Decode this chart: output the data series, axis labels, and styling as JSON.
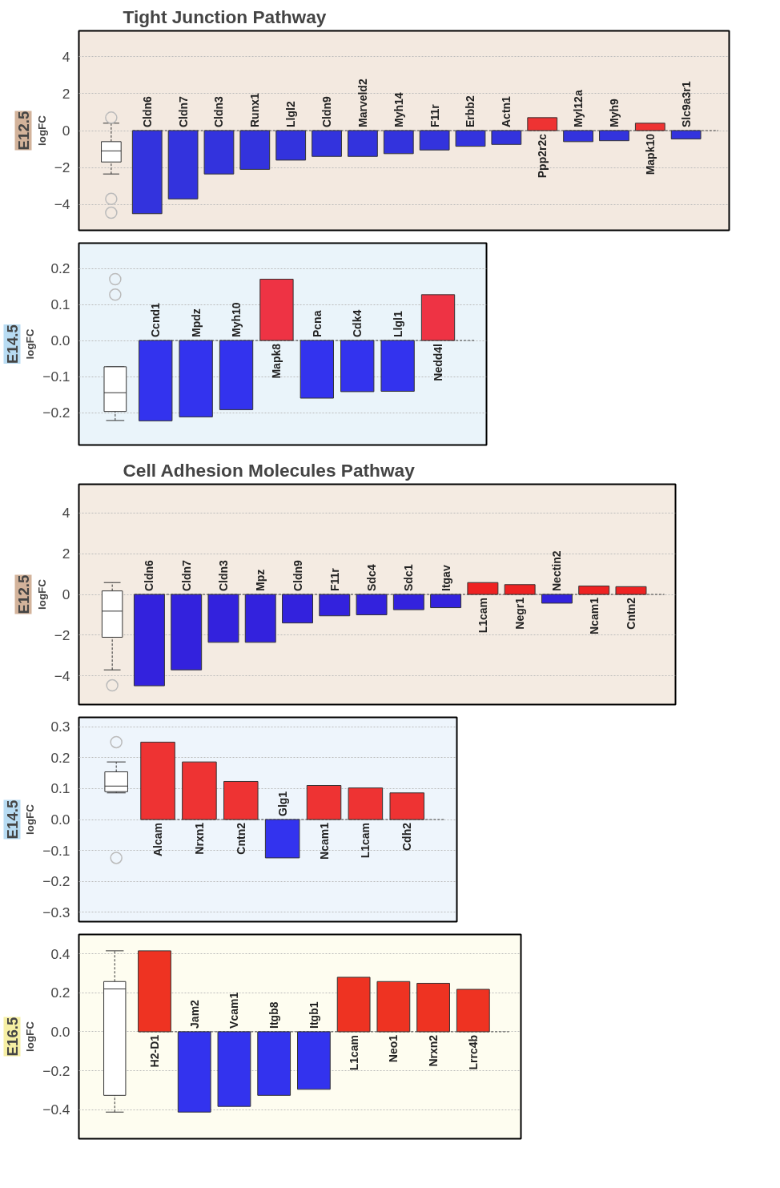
{
  "chart_data": [
    {
      "type": "bar",
      "title": "Tight Junction Pathway",
      "subtitle": "E12.5",
      "ylabel": "logFC",
      "grid": "y",
      "ylim": [
        -5.4,
        5.4
      ],
      "yticks": [
        -4,
        -2,
        0,
        2,
        4
      ],
      "ref_lines": [
        {
          "axis": "y",
          "value": 0,
          "line_style": "dashed"
        }
      ],
      "categories": [
        null,
        "Cldn6",
        "Cldn7",
        "Cldn3",
        "Runx1",
        "Llgl2",
        "Cldn9",
        "Marveld2",
        "Myh14",
        "F11r",
        "Erbb2",
        "Actn1",
        "Ppp2r2c",
        "Myl12a",
        "Myh9",
        "Mapk10",
        "Slc9a3r1"
      ],
      "series": [
        {
          "values": [
            null,
            -4.5,
            -3.7,
            -2.35,
            -2.1,
            -1.6,
            -1.4,
            -1.4,
            -1.25,
            -1.05,
            -0.85,
            -0.75,
            0.7,
            -0.6,
            -0.55,
            0.4,
            -0.45
          ],
          "colors": [
            null,
            "#3333dd",
            "#3333dd",
            "#3333dd",
            "#3333dd",
            "#3333dd",
            "#3333dd",
            "#3333dd",
            "#3333dd",
            "#3333dd",
            "#3333dd",
            "#3333dd",
            "#ee3333",
            "#3333dd",
            "#3333dd",
            "#ee3333",
            "#3333dd"
          ]
        },
        {
          "type": "box",
          "boxes": [
            {
              "low": -2.35,
              "q1": -1.7,
              "median": -1.1,
              "q3": -0.6,
              "high": 0.4,
              "outliers": [
                0.7,
                -3.7,
                -4.45
              ]
            },
            null,
            null,
            null,
            null,
            null,
            null,
            null,
            null,
            null,
            null,
            null,
            null,
            null,
            null,
            null,
            null
          ]
        }
      ]
    },
    {
      "type": "bar",
      "subtitle": "E14.5",
      "ylabel": "logFC",
      "grid": "y",
      "ylim": [
        -0.29,
        0.27
      ],
      "yticks": [
        {
          "value": -0.2,
          "label": "−0.2"
        },
        {
          "value": -0.1,
          "label": "−0.1"
        },
        {
          "value": 0,
          "label": "0.0"
        },
        0.1,
        0.2
      ],
      "ref_lines": [
        {
          "axis": "y",
          "value": 0,
          "line_style": "dashed"
        }
      ],
      "categories": [
        null,
        "Ccnd1",
        "Mpdz",
        "Myh10",
        "Mapk8",
        "Pcna",
        "Cdk4",
        "Llgl1",
        "Nedd4l"
      ],
      "series": [
        {
          "values": [
            null,
            -0.223,
            -0.212,
            -0.192,
            0.17,
            -0.16,
            -0.142,
            -0.141,
            0.127
          ],
          "colors": [
            null,
            "#3333ee",
            "#3333ee",
            "#3333ee",
            "#ee3344",
            "#3333ee",
            "#3333ee",
            "#3333ee",
            "#ee3344"
          ]
        },
        {
          "type": "box",
          "boxes": [
            {
              "low": -0.222,
              "q1": -0.197,
              "median": -0.145,
              "q3": -0.073,
              "high": -0.073,
              "outliers": [
                0.127,
                0.17
              ]
            },
            null,
            null,
            null,
            null,
            null,
            null,
            null,
            null
          ]
        }
      ]
    },
    {
      "type": "bar",
      "title": "Cell Adhesion Molecules Pathway",
      "subtitle": "E12.5",
      "ylabel": "logFC",
      "grid": "y",
      "ylim": [
        -5.4,
        5.4
      ],
      "yticks": [
        {
          "value": -4,
          "label": "−4"
        },
        {
          "value": -2,
          "label": "−2"
        },
        0,
        2,
        4
      ],
      "ref_lines": [
        {
          "axis": "y",
          "value": 0,
          "line_style": "dashed"
        }
      ],
      "categories": [
        null,
        "Cldn6",
        "Cldn7",
        "Cldn3",
        "Mpz",
        "Cldn9",
        "F11r",
        "Sdc4",
        "Sdc1",
        "Itgav",
        "L1cam",
        "Negr1",
        "Nectin2",
        "Ncam1",
        "Cntn2"
      ],
      "series": [
        {
          "values": [
            null,
            -4.48,
            -3.7,
            -2.35,
            -2.35,
            -1.4,
            -1.05,
            -1.0,
            -0.75,
            -0.65,
            0.58,
            0.48,
            -0.43,
            0.41,
            0.38
          ],
          "colors": [
            null,
            "#3322dd",
            "#3322dd",
            "#3322dd",
            "#3322dd",
            "#3322dd",
            "#3322dd",
            "#3322dd",
            "#3322dd",
            "#3322dd",
            "#ee2222",
            "#ee2222",
            "#3322dd",
            "#ee2222",
            "#ee2222"
          ]
        },
        {
          "type": "box",
          "boxes": [
            {
              "low": -3.7,
              "q1": -2.1,
              "median": -0.82,
              "q3": 0.17,
              "high": 0.58,
              "outliers": [
                -4.46
              ]
            },
            null,
            null,
            null,
            null,
            null,
            null,
            null,
            null,
            null,
            null,
            null,
            null,
            null,
            null
          ]
        }
      ]
    },
    {
      "type": "bar",
      "subtitle": "E14.5",
      "ylabel": "logFC",
      "grid": "y",
      "ylim": [
        -0.33,
        0.33
      ],
      "yticks": [
        {
          "value": -0.3,
          "label": "−0.3"
        },
        {
          "value": -0.2,
          "label": "−0.2"
        },
        {
          "value": -0.1,
          "label": "−0.1"
        },
        {
          "value": 0,
          "label": "0.0"
        },
        0.1,
        0.2,
        0.3
      ],
      "ref_lines": [
        {
          "axis": "y",
          "value": 0,
          "line_style": "dashed"
        }
      ],
      "categories": [
        null,
        "Alcam",
        "Nrxn1",
        "Cntn2",
        "Glg1",
        "Ncam1",
        "L1cam",
        "Cdh2"
      ],
      "series": [
        {
          "values": [
            null,
            0.25,
            0.186,
            0.123,
            -0.124,
            0.11,
            0.102,
            0.086
          ],
          "colors": [
            null,
            "#ee3333",
            "#ee3333",
            "#ee3333",
            "#3333ee",
            "#ee3333",
            "#ee3333",
            "#ee3333"
          ]
        },
        {
          "type": "box",
          "boxes": [
            {
              "low": 0.086,
              "q1": 0.09,
              "median": 0.108,
              "q3": 0.154,
              "high": 0.186,
              "outliers": [
                0.25,
                -0.124
              ]
            },
            null,
            null,
            null,
            null,
            null,
            null,
            null
          ]
        }
      ]
    },
    {
      "type": "bar",
      "subtitle": "E16.5",
      "ylabel": "logFC",
      "grid": "y",
      "ylim": [
        -0.55,
        0.5
      ],
      "yticks": [
        {
          "value": -0.4,
          "label": "−0.4"
        },
        {
          "value": -0.2,
          "label": "−0.2"
        },
        {
          "value": 0,
          "label": "0.0"
        },
        0.2,
        0.4
      ],
      "ref_lines": [
        {
          "axis": "y",
          "value": 0,
          "line_style": "dashed"
        }
      ],
      "categories": [
        null,
        "H2-D1",
        "Jam2",
        "Vcam1",
        "Itgb8",
        "Itgb1",
        "L1cam",
        "Neo1",
        "Nrxn2",
        "Lrrc4b"
      ],
      "series": [
        {
          "values": [
            null,
            0.416,
            -0.413,
            -0.384,
            -0.327,
            -0.296,
            0.28,
            0.258,
            0.249,
            0.218
          ],
          "colors": [
            null,
            "#ee3322",
            "#3333ee",
            "#3333ee",
            "#3333ee",
            "#3333ee",
            "#ee3322",
            "#ee3322",
            "#ee3322",
            "#ee3322"
          ]
        },
        {
          "type": "box",
          "boxes": [
            {
              "low": -0.413,
              "q1": -0.327,
              "median": 0.22,
              "q3": 0.258,
              "high": 0.416
            },
            null,
            null,
            null,
            null,
            null,
            null,
            null,
            null,
            null
          ]
        }
      ]
    }
  ]
}
